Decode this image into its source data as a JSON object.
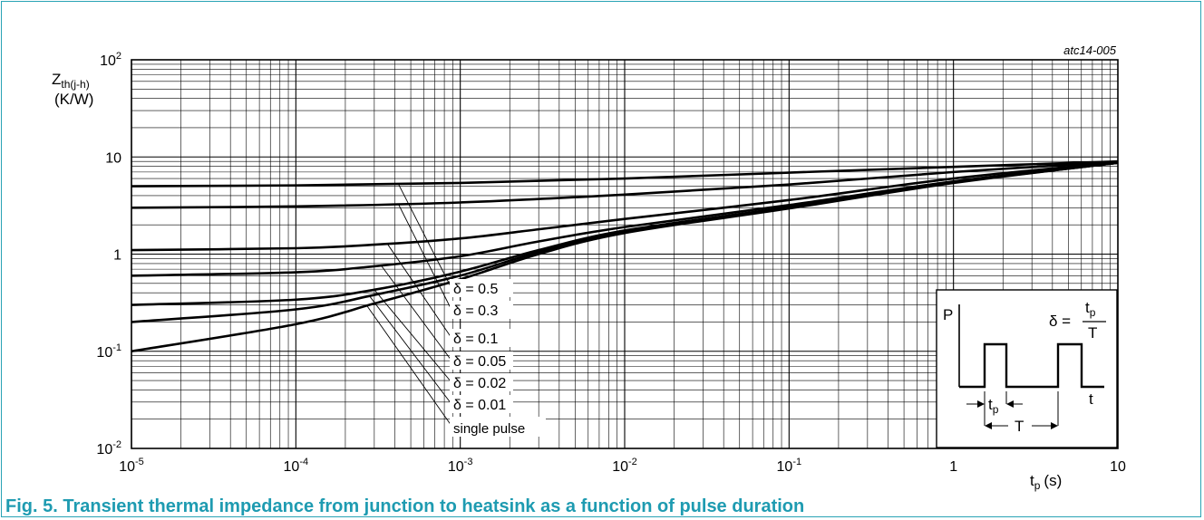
{
  "figure_id": "atc14-005",
  "caption": "Fig. 5. Transient thermal impedance from junction to heatsink as a function of pulse duration",
  "colors": {
    "frame": "#29a3b5",
    "caption": "#1e9bb1",
    "ink": "#000000"
  },
  "chart_data": {
    "type": "line",
    "title": "",
    "ylabel_main": "Z",
    "ylabel_sub": "th(j-h)",
    "yunit": "(K/W)",
    "xlabel_main": "t",
    "xlabel_sub": "p",
    "xunit": "(s)",
    "xscale": "log",
    "yscale": "log",
    "xlim": [
      1e-05,
      10
    ],
    "ylim": [
      0.01,
      100
    ],
    "grid": true,
    "x_ticks": [
      {
        "value": 1e-05,
        "base": "10",
        "exp": "-5"
      },
      {
        "value": 0.0001,
        "base": "10",
        "exp": "-4"
      },
      {
        "value": 0.001,
        "base": "10",
        "exp": "-3"
      },
      {
        "value": 0.01,
        "base": "10",
        "exp": "-2"
      },
      {
        "value": 0.1,
        "base": "10",
        "exp": "-1"
      },
      {
        "value": 1,
        "base": "1",
        "exp": ""
      },
      {
        "value": 10,
        "base": "10",
        "exp": ""
      }
    ],
    "y_ticks": [
      {
        "value": 0.01,
        "base": "10",
        "exp": "-2"
      },
      {
        "value": 0.1,
        "base": "10",
        "exp": "-1"
      },
      {
        "value": 1,
        "base": "1",
        "exp": ""
      },
      {
        "value": 10,
        "base": "10",
        "exp": ""
      },
      {
        "value": 100,
        "base": "10",
        "exp": "2"
      }
    ],
    "series": [
      {
        "name": "δ = 0.5",
        "x": [
          1e-05,
          0.0001,
          0.001,
          0.01,
          0.1,
          1,
          10
        ],
        "y": [
          5.0,
          5.1,
          5.4,
          6.0,
          6.9,
          7.9,
          9.0
        ]
      },
      {
        "name": "δ = 0.3",
        "x": [
          1e-05,
          0.0001,
          0.001,
          0.01,
          0.1,
          1,
          10
        ],
        "y": [
          3.0,
          3.1,
          3.4,
          4.1,
          5.2,
          7.0,
          8.9
        ]
      },
      {
        "name": "δ = 0.1",
        "x": [
          1e-05,
          0.0001,
          0.0003,
          0.001,
          0.003,
          0.01,
          0.1,
          1,
          10
        ],
        "y": [
          1.1,
          1.15,
          1.25,
          1.45,
          1.8,
          2.3,
          3.6,
          6.0,
          8.8
        ]
      },
      {
        "name": "δ = 0.05",
        "x": [
          1e-05,
          0.0001,
          0.0003,
          0.001,
          0.003,
          0.01,
          0.1,
          1,
          10
        ],
        "y": [
          0.6,
          0.65,
          0.75,
          0.95,
          1.35,
          1.9,
          3.2,
          5.6,
          8.7
        ]
      },
      {
        "name": "δ = 0.02",
        "x": [
          1e-05,
          0.0001,
          0.0003,
          0.001,
          0.003,
          0.01,
          0.1,
          1,
          10
        ],
        "y": [
          0.3,
          0.34,
          0.43,
          0.66,
          1.1,
          1.75,
          3.05,
          5.5,
          8.7
        ]
      },
      {
        "name": "δ = 0.01",
        "x": [
          1e-05,
          0.0001,
          0.0003,
          0.001,
          0.003,
          0.01,
          0.1,
          1,
          10
        ],
        "y": [
          0.2,
          0.27,
          0.38,
          0.6,
          1.05,
          1.7,
          3.0,
          5.45,
          8.7
        ]
      },
      {
        "name": "single pulse",
        "x": [
          1e-05,
          0.0001,
          0.0003,
          0.001,
          0.003,
          0.01,
          0.1,
          1,
          10
        ],
        "y": [
          0.1,
          0.19,
          0.31,
          0.55,
          1.0,
          1.65,
          2.95,
          5.4,
          8.7
        ]
      }
    ],
    "legend_labels": [
      "δ = 0.5",
      "δ = 0.3",
      "δ = 0.1",
      "δ = 0.05",
      "δ = 0.02",
      "δ = 0.01",
      "single pulse"
    ],
    "legend_placement": "bottom-center, leader lines to curves",
    "inset": {
      "p_label": "P",
      "delta_label": "δ =",
      "frac_num_main": "t",
      "frac_num_sub": "p",
      "frac_den": "T",
      "tp_main": "t",
      "tp_sub": "p",
      "T_label": "T",
      "t_label": "t"
    }
  }
}
